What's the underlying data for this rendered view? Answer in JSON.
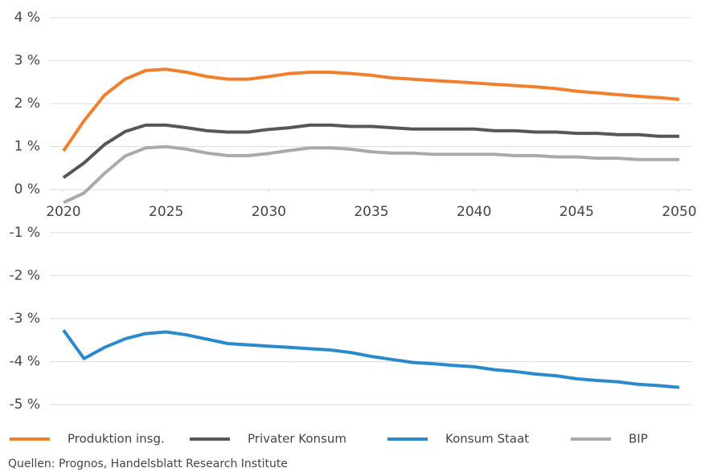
{
  "chart_data": {
    "type": "line",
    "x": [
      2020,
      2021,
      2022,
      2023,
      2024,
      2025,
      2026,
      2027,
      2028,
      2029,
      2030,
      2031,
      2032,
      2033,
      2034,
      2035,
      2036,
      2037,
      2038,
      2039,
      2040,
      2041,
      2042,
      2043,
      2044,
      2045,
      2046,
      2047,
      2048,
      2049,
      2050
    ],
    "series": [
      {
        "name": "Produktion insg.",
        "color": "#f07f2e",
        "values": [
          0.9,
          1.6,
          2.2,
          2.57,
          2.77,
          2.8,
          2.73,
          2.63,
          2.57,
          2.57,
          2.63,
          2.7,
          2.73,
          2.73,
          2.7,
          2.66,
          2.6,
          2.57,
          2.54,
          2.51,
          2.48,
          2.45,
          2.42,
          2.39,
          2.35,
          2.29,
          2.25,
          2.21,
          2.17,
          2.14,
          2.1
        ]
      },
      {
        "name": "Privater Konsum",
        "color": "#575757",
        "values": [
          0.28,
          0.62,
          1.05,
          1.35,
          1.5,
          1.5,
          1.44,
          1.37,
          1.34,
          1.34,
          1.4,
          1.44,
          1.5,
          1.5,
          1.47,
          1.47,
          1.44,
          1.41,
          1.41,
          1.41,
          1.41,
          1.37,
          1.37,
          1.34,
          1.34,
          1.31,
          1.31,
          1.28,
          1.28,
          1.24,
          1.24
        ]
      },
      {
        "name": "Konsum Staat",
        "color": "#2b8acb",
        "values": [
          -3.27,
          -3.93,
          -3.67,
          -3.47,
          -3.35,
          -3.31,
          -3.38,
          -3.48,
          -3.58,
          -3.61,
          -3.64,
          -3.67,
          -3.7,
          -3.73,
          -3.79,
          -3.88,
          -3.95,
          -4.02,
          -4.05,
          -4.09,
          -4.12,
          -4.19,
          -4.23,
          -4.29,
          -4.33,
          -4.4,
          -4.44,
          -4.47,
          -4.53,
          -4.56,
          -4.6
        ]
      },
      {
        "name": "BIP",
        "color": "#aaaaaa",
        "values": [
          -0.3,
          -0.08,
          0.38,
          0.78,
          0.97,
          1.0,
          0.94,
          0.85,
          0.79,
          0.79,
          0.84,
          0.91,
          0.97,
          0.97,
          0.94,
          0.88,
          0.85,
          0.85,
          0.82,
          0.82,
          0.82,
          0.82,
          0.79,
          0.79,
          0.76,
          0.76,
          0.73,
          0.73,
          0.7,
          0.7,
          0.7
        ]
      }
    ],
    "xlim": [
      2020,
      2050
    ],
    "xticks": [
      2020,
      2025,
      2030,
      2035,
      2040,
      2045,
      2050
    ],
    "ylim": [
      -5,
      4
    ],
    "yticks": [
      {
        "value": 4,
        "label": "4 %"
      },
      {
        "value": 3,
        "label": "3 %"
      },
      {
        "value": 2,
        "label": "2 %"
      },
      {
        "value": 1,
        "label": "1 %"
      },
      {
        "value": 0,
        "label": "0 %"
      },
      {
        "value": -1,
        "label": "-1 %"
      },
      {
        "value": -2,
        "label": "-2 %"
      },
      {
        "value": -3,
        "label": "-3 %"
      },
      {
        "value": -4,
        "label": "-4 %"
      },
      {
        "value": -5,
        "label": "-5 %"
      }
    ],
    "grid": true,
    "legend": "bottom",
    "source": "Quellen: Prognos, Handelsblatt Research Institute"
  }
}
